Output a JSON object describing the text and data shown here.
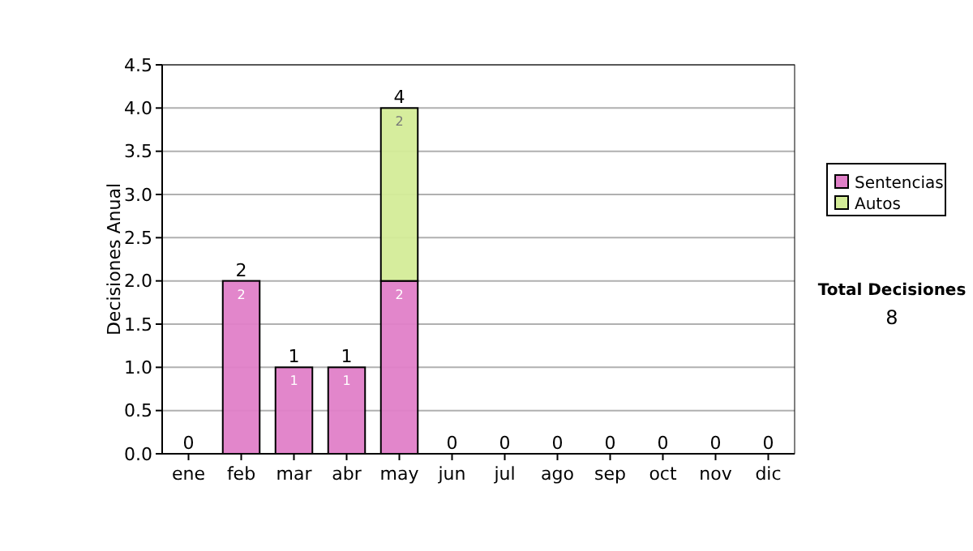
{
  "chart_data": {
    "type": "bar",
    "stacked": true,
    "ylabel": "Decisiones Anual",
    "categories": [
      "ene",
      "feb",
      "mar",
      "abr",
      "may",
      "jun",
      "jul",
      "ago",
      "sep",
      "oct",
      "nov",
      "dic"
    ],
    "series": [
      {
        "name": "Sentencias",
        "color": "#e080c8",
        "values": [
          0,
          2,
          1,
          1,
          2,
          0,
          0,
          0,
          0,
          0,
          0,
          0
        ],
        "value_labels": [
          null,
          "2",
          "1",
          "1",
          "2",
          null,
          null,
          null,
          null,
          null,
          null,
          null
        ]
      },
      {
        "name": "Autos",
        "color": "#d4ec98",
        "values": [
          0,
          0,
          0,
          0,
          2,
          0,
          0,
          0,
          0,
          0,
          0,
          0
        ],
        "value_labels": [
          null,
          null,
          null,
          null,
          "2",
          null,
          null,
          null,
          null,
          null,
          null,
          null
        ]
      }
    ],
    "totals": [
      "0",
      "2",
      "1",
      "1",
      "4",
      "0",
      "0",
      "0",
      "0",
      "0",
      "0",
      "0"
    ],
    "ylim": [
      0,
      4.5
    ],
    "yticks": [
      {
        "value": 0,
        "label": "0.0"
      },
      {
        "value": 0.5,
        "label": "0.5"
      },
      {
        "value": 1,
        "label": "1.0"
      },
      {
        "value": 1.5,
        "label": "1.5"
      },
      {
        "value": 2,
        "label": "2.0"
      },
      {
        "value": 2.5,
        "label": "2.5"
      },
      {
        "value": 3,
        "label": "3.0"
      },
      {
        "value": 3.5,
        "label": "3.5"
      },
      {
        "value": 4,
        "label": "4.0"
      },
      {
        "value": 4.5,
        "label": "4.5"
      }
    ],
    "grid": "y",
    "legend": "right",
    "annotations": [
      "Total Decisiones",
      "8"
    ]
  }
}
